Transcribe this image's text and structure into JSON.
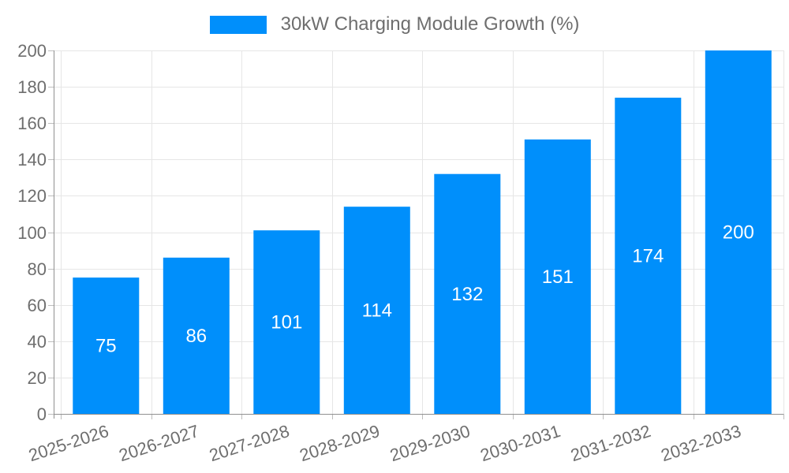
{
  "chart_data": {
    "type": "bar",
    "title": "30kW Charging Module Growth (%)",
    "categories": [
      "2025-2026",
      "2026-2027",
      "2027-2028",
      "2028-2029",
      "2029-2030",
      "2030-2031",
      "2031-2032",
      "2032-2033"
    ],
    "series": [
      {
        "name": "30kW Charging Module Growth (%)",
        "values": [
          75,
          86,
          101,
          114,
          132,
          151,
          174,
          200
        ]
      }
    ],
    "xlabel": "",
    "ylabel": "",
    "ylim": [
      0,
      200
    ],
    "ytick_step": 20,
    "yticks": [
      0,
      20,
      40,
      60,
      80,
      100,
      120,
      140,
      160,
      180,
      200
    ],
    "grid": true,
    "legend_position": "top",
    "x_label_rotation_deg": -18,
    "value_labels_visible": true,
    "colors": {
      "bar": "#008FFB",
      "grid": "#e6e6e6",
      "axis": "#909090",
      "tick": "#bdbdbd",
      "label_text": "#6e6e6e",
      "value_label_text": "#ffffff",
      "background": "#ffffff"
    }
  }
}
